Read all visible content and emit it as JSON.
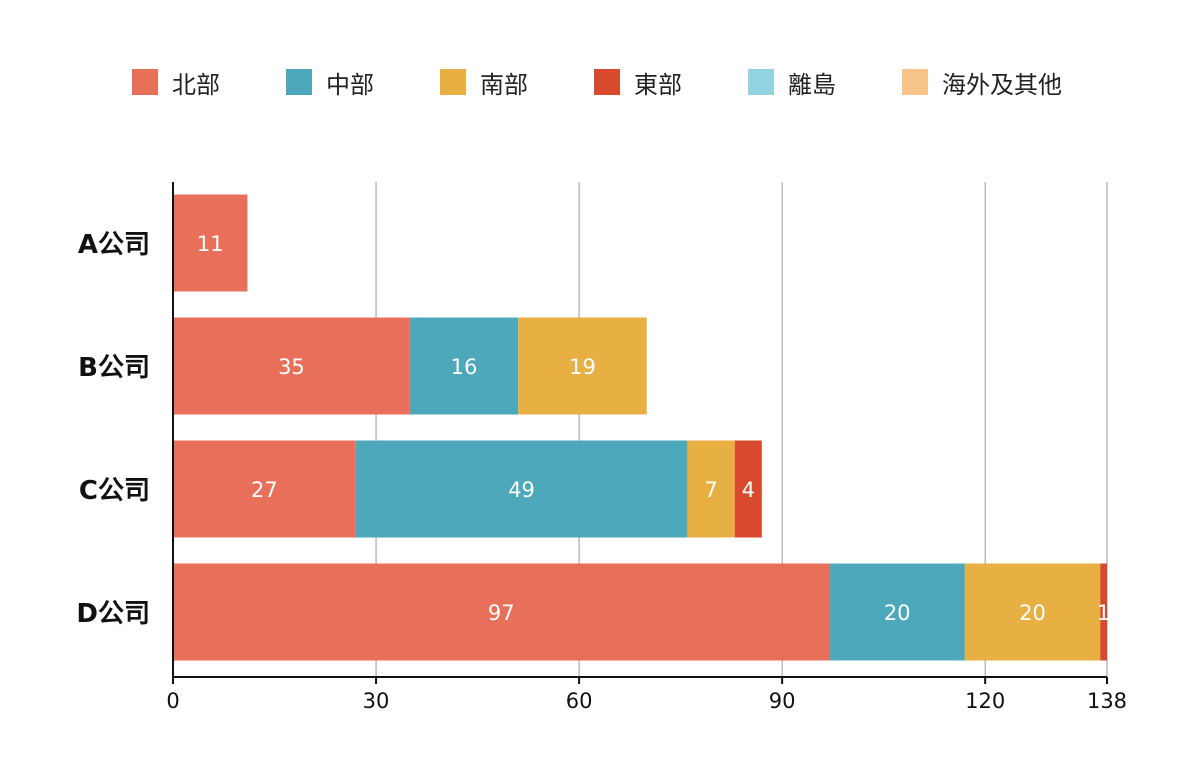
{
  "chart_data": {
    "type": "bar",
    "orientation": "horizontal",
    "stacked": true,
    "categories": [
      "A公司",
      "B公司",
      "C公司",
      "D公司"
    ],
    "series": [
      {
        "name": "北部",
        "color": "#E8705A",
        "values": [
          11,
          35,
          27,
          97
        ]
      },
      {
        "name": "中部",
        "color": "#4EA8BC",
        "values": [
          0,
          16,
          49,
          20
        ]
      },
      {
        "name": "南部",
        "color": "#E8AF43",
        "values": [
          0,
          19,
          7,
          20
        ]
      },
      {
        "name": "東部",
        "color": "#D84A2E",
        "values": [
          0,
          0,
          4,
          1
        ]
      },
      {
        "name": "離島",
        "color": "#93D3E0",
        "values": [
          0,
          0,
          0,
          0
        ]
      },
      {
        "name": "海外及其他",
        "color": "#F7C587",
        "values": [
          0,
          0,
          0,
          0
        ]
      }
    ],
    "xticks": [
      0,
      30,
      60,
      90,
      120,
      138
    ],
    "xlim": [
      0,
      138
    ],
    "grid": true,
    "legend_position": "top",
    "title": "",
    "xlabel": "",
    "ylabel": ""
  }
}
